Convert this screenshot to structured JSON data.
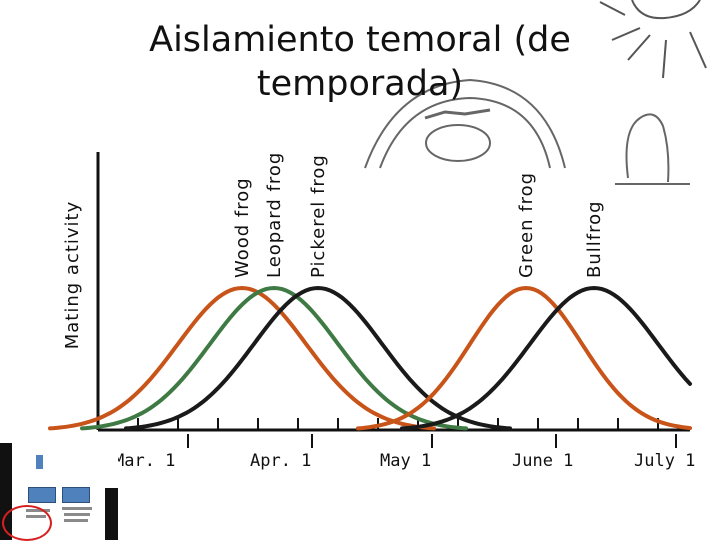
{
  "slide": {
    "title_line1": "Aislamiento temoral (de",
    "title_line2": "temporada)"
  },
  "chart_data": {
    "type": "line",
    "title": "",
    "ylabel": "Mating activity",
    "xlabel": "",
    "x_tick_labels": [
      "Mar. 1",
      "Apr. 1",
      "May 1",
      "June 1",
      "July 1"
    ],
    "x_ticks_day": [
      0,
      31,
      61,
      92,
      122
    ],
    "ylim": [
      0,
      1
    ],
    "grid": false,
    "series": [
      {
        "name": "Wood frog",
        "color": "#c8541a",
        "peak_day": 26,
        "halfwidth_days": 16,
        "peak": 1.0
      },
      {
        "name": "Leopard frog",
        "color": "#3f7a45",
        "peak_day": 34,
        "halfwidth_days": 16,
        "peak": 1.0
      },
      {
        "name": "Pickerel frog",
        "color": "#1a1a1a",
        "peak_day": 45,
        "halfwidth_days": 16,
        "peak": 1.0
      },
      {
        "name": "Green frog",
        "color": "#c8541a",
        "peak_day": 97,
        "halfwidth_days": 14,
        "peak": 1.0
      },
      {
        "name": "Bullfrog",
        "color": "#1a1a1a",
        "peak_day": 114,
        "halfwidth_days": 16,
        "peak": 1.0
      }
    ]
  },
  "colors": {
    "axis": "#111111",
    "cartoon": "#555555"
  }
}
